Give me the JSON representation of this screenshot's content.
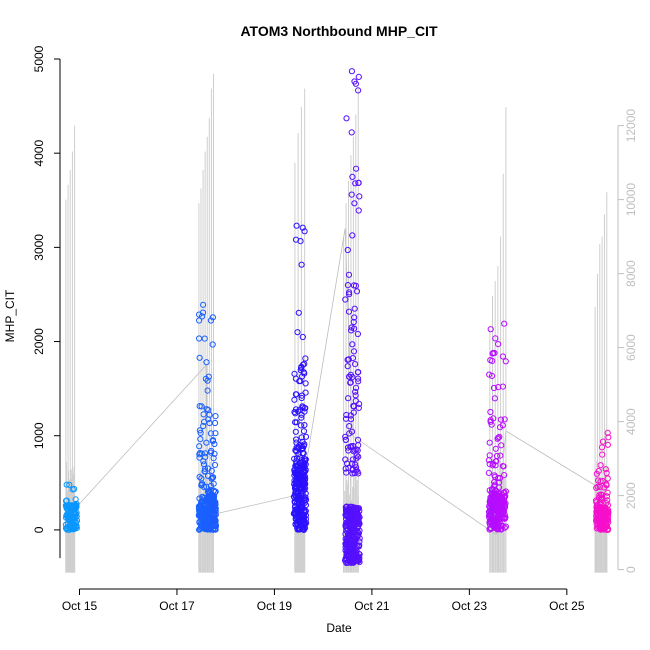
{
  "chart_data": {
    "type": "scatter",
    "title": "ATOM3 Northbound MHP_CIT",
    "xlabel": "Date",
    "ylabel": "MHP_CIT",
    "xlim": [
      14.6,
      26.05
    ],
    "ylim": [
      -500,
      5000
    ],
    "y2lim": [
      -200,
      13800
    ],
    "grid": false,
    "x_tick_values": [
      15,
      17,
      19,
      21,
      23,
      25
    ],
    "x_tick_labels": [
      "Oct 15",
      "Oct 17",
      "Oct 19",
      "Oct 21",
      "Oct 23",
      "Oct 25"
    ],
    "y_tick_values": [
      0,
      1000,
      2000,
      3000,
      4000,
      5000
    ],
    "y_tick_labels": [
      "0",
      "1000",
      "2000",
      "3000",
      "4000",
      "5000"
    ],
    "y2_tick_values": [
      0,
      2000,
      4000,
      6000,
      8000,
      10000,
      12000
    ],
    "y2_tick_labels": [
      "0",
      "2000",
      "4000",
      "6000",
      "8000",
      "10000",
      "12000"
    ],
    "colors": {
      "point_gradient": [
        "#0a9bff",
        "#0a7dff",
        "#1e5aff",
        "#2a10ff",
        "#6a10ff",
        "#9a10ff",
        "#d60aff",
        "#ff10c0"
      ],
      "secondary_series": "#cfcfcf",
      "connector_line": "#bdbdbd",
      "axis": "#000000",
      "secondary_axis": "#bfbfbf"
    },
    "clusters": [
      {
        "x_start": 14.72,
        "x_end": 14.95,
        "y_median": 120,
        "y_max": 480,
        "y_min": 0,
        "n": 120
      },
      {
        "x_start": 17.45,
        "x_end": 17.8,
        "y_median": 180,
        "y_max": 2390,
        "y_min": 0,
        "n": 320
      },
      {
        "x_start": 19.4,
        "x_end": 19.65,
        "y_median": 350,
        "y_max": 3230,
        "y_min": 0,
        "n": 320
      },
      {
        "x_start": 20.45,
        "x_end": 20.75,
        "y_median": 300,
        "y_max": 4870,
        "y_min": -350,
        "n": 380
      },
      {
        "x_start": 23.4,
        "x_end": 23.75,
        "y_median": 180,
        "y_max": 2190,
        "y_min": 0,
        "n": 260
      },
      {
        "x_start": 25.6,
        "x_end": 25.85,
        "y_median": 120,
        "y_max": 1030,
        "y_min": 0,
        "n": 200
      }
    ],
    "connector_path": [
      [
        14.95,
        250
      ],
      [
        17.6,
        1750
      ],
      [
        17.62,
        150
      ],
      [
        19.55,
        380
      ],
      [
        20.45,
        3200
      ],
      [
        20.6,
        1000
      ],
      [
        23.55,
        -50
      ],
      [
        23.75,
        1050
      ],
      [
        25.75,
        420
      ]
    ],
    "secondary_series": {
      "name": "",
      "axis": "right",
      "bursts": [
        {
          "x_start": 14.72,
          "x_end": 14.9,
          "peaks": [
            10000,
            10400,
            10800,
            11300,
            12000
          ]
        },
        {
          "x_start": 17.45,
          "x_end": 17.75,
          "peaks": [
            9900,
            10300,
            10800,
            11300,
            11700,
            12200,
            13000,
            13400
          ]
        },
        {
          "x_start": 19.42,
          "x_end": 19.62,
          "peaks": [
            11000,
            11800,
            12500,
            13000
          ]
        },
        {
          "x_start": 20.42,
          "x_end": 20.72,
          "peaks": [
            9000,
            9900,
            10500,
            11200,
            11700,
            12300,
            13000
          ]
        },
        {
          "x_start": 23.42,
          "x_end": 23.75,
          "peaks": [
            6500,
            7400,
            7800,
            8200,
            9000,
            10700,
            12500
          ]
        },
        {
          "x_start": 25.58,
          "x_end": 25.82,
          "peaks": [
            7100,
            8000,
            8800,
            9000,
            9600,
            10200
          ]
        }
      ],
      "floor": 0
    }
  }
}
